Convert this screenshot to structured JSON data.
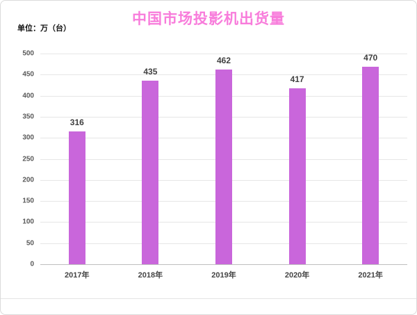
{
  "chart": {
    "title": "中国市场投影机出货量",
    "unit_label": "单位：万（台）",
    "title_color": "#f87cdb",
    "bar_color": "#c966db"
  },
  "chart_data": {
    "type": "bar",
    "title": "中国市场投影机出货量",
    "categories": [
      "2017年",
      "2018年",
      "2019年",
      "2020年",
      "2021年"
    ],
    "values": [
      316,
      435,
      462,
      417,
      470
    ],
    "xlabel": "",
    "ylabel": "单位：万（台）",
    "ylim": [
      0,
      500
    ],
    "ytick_step": 50,
    "grid": true,
    "legend": false,
    "data_labels": true
  }
}
